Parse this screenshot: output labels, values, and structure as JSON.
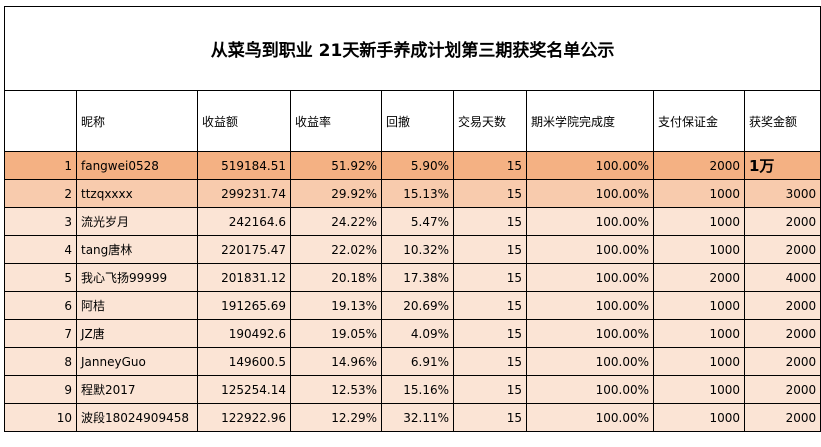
{
  "title": "从菜鸟到职业 21天新手养成计划第三期获奖名单公示",
  "headers": [
    "",
    "昵称",
    "收益额",
    "收益率",
    "回撤",
    "交易天数",
    "期米学院完成度",
    "支付保证金",
    "获奖金额"
  ],
  "rows": [
    [
      "1",
      "fangwei0528",
      "519184.51",
      "51.92%",
      "5.90%",
      "15",
      "100.00%",
      "2000",
      "1万"
    ],
    [
      "2",
      "ttzqxxxx",
      "299231.74",
      "29.92%",
      "15.13%",
      "15",
      "100.00%",
      "1000",
      "3000"
    ],
    [
      "3",
      "流光岁月",
      "242164.6",
      "24.22%",
      "5.47%",
      "15",
      "100.00%",
      "1000",
      "2000"
    ],
    [
      "4",
      "tang唐林",
      "220175.47",
      "22.02%",
      "10.32%",
      "15",
      "100.00%",
      "1000",
      "2000"
    ],
    [
      "5",
      "我心飞扬99999",
      "201831.12",
      "20.18%",
      "17.38%",
      "15",
      "100.00%",
      "2000",
      "4000"
    ],
    [
      "6",
      "阿桔",
      "191265.69",
      "19.13%",
      "20.69%",
      "15",
      "100.00%",
      "1000",
      "2000"
    ],
    [
      "7",
      "JZ唐",
      "190492.6",
      "19.05%",
      "4.09%",
      "15",
      "100.00%",
      "1000",
      "2000"
    ],
    [
      "8",
      "JanneyGuo",
      "149600.5",
      "14.96%",
      "6.91%",
      "15",
      "100.00%",
      "1000",
      "2000"
    ],
    [
      "9",
      "程默2017",
      "125254.14",
      "12.53%",
      "15.16%",
      "15",
      "100.00%",
      "1000",
      "2000"
    ],
    [
      "10",
      "波段18024909458",
      "122922.96",
      "12.29%",
      "32.11%",
      "15",
      "100.00%",
      "1000",
      "2000"
    ]
  ],
  "colors": {
    "row_first": "#f4b183",
    "row_second": "#f8cbad",
    "row_rest": "#fbe4d5"
  }
}
